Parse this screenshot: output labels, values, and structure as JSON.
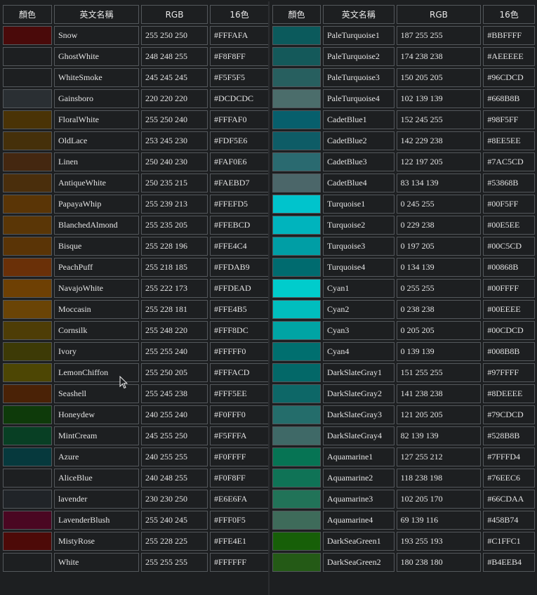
{
  "headers": {
    "color": "顏色",
    "name": "英文名稱",
    "rgb": "RGB",
    "hex": "16色"
  },
  "left_rows": [
    {
      "name": "Snow",
      "rgb": "255 250 250",
      "hex": "#FFFAFA",
      "swatch": "#4a0a0a"
    },
    {
      "name": "GhostWhite",
      "rgb": "248 248 255",
      "hex": "#F8F8FF",
      "swatch": "#1d1f21"
    },
    {
      "name": "WhiteSmoke",
      "rgb": "245 245 245",
      "hex": "#F5F5F5",
      "swatch": "#1d1f21"
    },
    {
      "name": "Gainsboro",
      "rgb": "220 220 220",
      "hex": "#DCDCDC",
      "swatch": "#2a2f33"
    },
    {
      "name": "FloralWhite",
      "rgb": "255 250 240",
      "hex": "#FFFAF0",
      "swatch": "#4a3306"
    },
    {
      "name": "OldLace",
      "rgb": "253 245 230",
      "hex": "#FDF5E6",
      "swatch": "#45300a"
    },
    {
      "name": "Linen",
      "rgb": "250 240 230",
      "hex": "#FAF0E6",
      "swatch": "#442710"
    },
    {
      "name": "AntiqueWhite",
      "rgb": "250 235 215",
      "hex": "#FAEBD7",
      "swatch": "#4a2e0c"
    },
    {
      "name": "PapayaWhip",
      "rgb": "255 239 213",
      "hex": "#FFEFD5",
      "swatch": "#5a3506"
    },
    {
      "name": "BlanchedAlmond",
      "rgb": "255 235 205",
      "hex": "#FFEBCD",
      "swatch": "#5a3606"
    },
    {
      "name": "Bisque",
      "rgb": "255 228 196",
      "hex": "#FFE4C4",
      "swatch": "#5a3406"
    },
    {
      "name": "PeachPuff",
      "rgb": "255 218 185",
      "hex": "#FFDAB9",
      "swatch": "#6a3008"
    },
    {
      "name": "NavajoWhite",
      "rgb": "255 222 173",
      "hex": "#FFDEAD",
      "swatch": "#6e4004"
    },
    {
      "name": "Moccasin",
      "rgb": "255 228 181",
      "hex": "#FFE4B5",
      "swatch": "#6a4406"
    },
    {
      "name": "Cornsilk",
      "rgb": "255 248 220",
      "hex": "#FFF8DC",
      "swatch": "#4e3d06"
    },
    {
      "name": "Ivory",
      "rgb": "255 255 240",
      "hex": "#FFFFF0",
      "swatch": "#3d3a06"
    },
    {
      "name": "LemonChiffon",
      "rgb": "255 250 205",
      "hex": "#FFFACD",
      "swatch": "#4d4604"
    },
    {
      "name": "Seashell",
      "rgb": "255 245 238",
      "hex": "#FFF5EE",
      "swatch": "#4a2206"
    },
    {
      "name": "Honeydew",
      "rgb": "240 255 240",
      "hex": "#F0FFF0",
      "swatch": "#0e3a0a"
    },
    {
      "name": "MintCream",
      "rgb": "245 255 250",
      "hex": "#F5FFFA",
      "swatch": "#083f24"
    },
    {
      "name": "Azure",
      "rgb": "240 255 255",
      "hex": "#F0FFFF",
      "swatch": "#06393d"
    },
    {
      "name": "AliceBlue",
      "rgb": "240 248 255",
      "hex": "#F0F8FF",
      "swatch": "#1d1f21"
    },
    {
      "name": "lavender",
      "rgb": "230 230 250",
      "hex": "#E6E6FA",
      "swatch": "#202428"
    },
    {
      "name": "LavenderBlush",
      "rgb": "255 240 245",
      "hex": "#FFF0F5",
      "swatch": "#4a0722"
    },
    {
      "name": "MistyRose",
      "rgb": "255 228 225",
      "hex": "#FFE4E1",
      "swatch": "#4d0a08"
    },
    {
      "name": "White",
      "rgb": "255 255 255",
      "hex": "#FFFFFF",
      "swatch": "#1d1f21"
    }
  ],
  "right_rows": [
    {
      "name": "PaleTurquoise1",
      "rgb": "187 255 255",
      "hex": "#BBFFFF",
      "swatch": "#0b5a5c"
    },
    {
      "name": "PaleTurquoise2",
      "rgb": "174 238 238",
      "hex": "#AEEEEE",
      "swatch": "#14595a"
    },
    {
      "name": "PaleTurquoise3",
      "rgb": "150 205 205",
      "hex": "#96CDCD",
      "swatch": "#275f5f"
    },
    {
      "name": "PaleTurquoise4",
      "rgb": "102 139 139",
      "hex": "#668B8B",
      "swatch": "#4b6d6b"
    },
    {
      "name": "CadetBlue1",
      "rgb": "152 245 255",
      "hex": "#98F5FF",
      "swatch": "#075f6c"
    },
    {
      "name": "CadetBlue2",
      "rgb": "142 229 238",
      "hex": "#8EE5EE",
      "swatch": "#0e5c66"
    },
    {
      "name": "CadetBlue3",
      "rgb": "122 197 205",
      "hex": "#7AC5CD",
      "swatch": "#2a6a70"
    },
    {
      "name": "CadetBlue4",
      "rgb": "83 134 139",
      "hex": "#53868B",
      "swatch": "#4b6669"
    },
    {
      "name": "Turquoise1",
      "rgb": "0 245 255",
      "hex": "#00F5FF",
      "swatch": "#00c4cc"
    },
    {
      "name": "Turquoise2",
      "rgb": "0 229 238",
      "hex": "#00E5EE",
      "swatch": "#00b4bd"
    },
    {
      "name": "Turquoise3",
      "rgb": "0 197 205",
      "hex": "#00C5CD",
      "swatch": "#009ea5"
    },
    {
      "name": "Turquoise4",
      "rgb": "0 134 139",
      "hex": "#00868B",
      "swatch": "#006b6f"
    },
    {
      "name": "Cyan1",
      "rgb": "0 255 255",
      "hex": "#00FFFF",
      "swatch": "#00cccc"
    },
    {
      "name": "Cyan2",
      "rgb": "0 238 238",
      "hex": "#00EEEE",
      "swatch": "#00bebe"
    },
    {
      "name": "Cyan3",
      "rgb": "0 205 205",
      "hex": "#00CDCD",
      "swatch": "#00a4a4"
    },
    {
      "name": "Cyan4",
      "rgb": "0 139 139",
      "hex": "#008B8B",
      "swatch": "#006f6f"
    },
    {
      "name": "DarkSlateGray1",
      "rgb": "151 255 255",
      "hex": "#97FFFF",
      "swatch": "#036868"
    },
    {
      "name": "DarkSlateGray2",
      "rgb": "141 238 238",
      "hex": "#8DEEEE",
      "swatch": "#0d6767"
    },
    {
      "name": "DarkSlateGray3",
      "rgb": "121 205 205",
      "hex": "#79CDCD",
      "swatch": "#246d6b"
    },
    {
      "name": "DarkSlateGray4",
      "rgb": "82 139 139",
      "hex": "#528B8B",
      "swatch": "#3f6967"
    },
    {
      "name": "Aquamarine1",
      "rgb": "127 255 212",
      "hex": "#7FFFD4",
      "swatch": "#067454"
    },
    {
      "name": "Aquamarine2",
      "rgb": "118 238 198",
      "hex": "#76EEC6",
      "swatch": "#0f7356"
    },
    {
      "name": "Aquamarine3",
      "rgb": "102 205 170",
      "hex": "#66CDAA",
      "swatch": "#217358"
    },
    {
      "name": "Aquamarine4",
      "rgb": "69 139 116",
      "hex": "#458B74",
      "swatch": "#3e6b5a"
    },
    {
      "name": "DarkSeaGreen1",
      "rgb": "193 255 193",
      "hex": "#C1FFC1",
      "swatch": "#175f08"
    },
    {
      "name": "DarkSeaGreen2",
      "rgb": "180 238 180",
      "hex": "#B4EEB4",
      "swatch": "#245a16"
    }
  ]
}
